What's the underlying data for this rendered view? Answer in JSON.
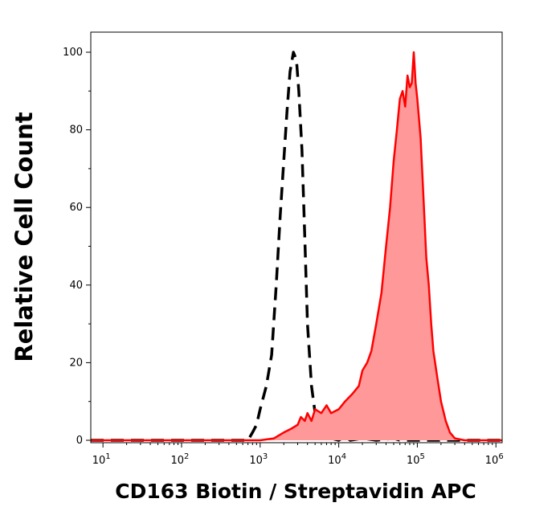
{
  "chart_data": {
    "type": "area",
    "title": "",
    "xlabel": "CD163 Biotin / Streptavidin APC",
    "ylabel": "Relative Cell Count",
    "x_scale": "log",
    "xlim": [
      7,
      1200000
    ],
    "ylim": [
      0,
      100
    ],
    "grid": false,
    "x_ticks": [
      {
        "value": 10,
        "base": "10",
        "exp": "1"
      },
      {
        "value": 100,
        "base": "10",
        "exp": "2"
      },
      {
        "value": 1000,
        "base": "10",
        "exp": "3"
      },
      {
        "value": 10000,
        "base": "10",
        "exp": "4"
      },
      {
        "value": 100000,
        "base": "10",
        "exp": "5"
      },
      {
        "value": 1000000,
        "base": "10",
        "exp": "6"
      }
    ],
    "y_ticks": [
      {
        "value": 0,
        "label": "0"
      },
      {
        "value": 20,
        "label": "20"
      },
      {
        "value": 40,
        "label": "40"
      },
      {
        "value": 60,
        "label": "60"
      },
      {
        "value": 80,
        "label": "80"
      },
      {
        "value": 100,
        "label": "100"
      }
    ],
    "series": [
      {
        "style": "dashed",
        "color": "#000000",
        "fill": false,
        "points": [
          [
            7,
            0
          ],
          [
            700,
            0
          ],
          [
            800,
            2
          ],
          [
            900,
            4
          ],
          [
            1000,
            8
          ],
          [
            1200,
            14
          ],
          [
            1400,
            22
          ],
          [
            1600,
            40
          ],
          [
            1800,
            58
          ],
          [
            2000,
            72
          ],
          [
            2200,
            85
          ],
          [
            2400,
            95
          ],
          [
            2650,
            100
          ],
          [
            2900,
            98
          ],
          [
            3100,
            90
          ],
          [
            3400,
            75
          ],
          [
            3700,
            52
          ],
          [
            4000,
            30
          ],
          [
            4500,
            14
          ],
          [
            5000,
            7
          ],
          [
            5600,
            3
          ],
          [
            6300,
            1
          ],
          [
            8000,
            0.5
          ],
          [
            10000,
            0
          ],
          [
            12000,
            1
          ],
          [
            14000,
            0
          ],
          [
            20000,
            0.5
          ],
          [
            30000,
            0
          ],
          [
            50000,
            0.5
          ],
          [
            60000,
            0
          ],
          [
            100000,
            0
          ],
          [
            1200000,
            0
          ]
        ]
      },
      {
        "style": "solid",
        "color": "#ff0000",
        "fill": true,
        "fill_color": "#ff9999",
        "points": [
          [
            7,
            0
          ],
          [
            1000,
            0
          ],
          [
            1500,
            0.5
          ],
          [
            2000,
            2
          ],
          [
            2500,
            3
          ],
          [
            3000,
            4
          ],
          [
            3300,
            6
          ],
          [
            3700,
            5
          ],
          [
            4000,
            7
          ],
          [
            4500,
            5
          ],
          [
            5000,
            8
          ],
          [
            6000,
            7
          ],
          [
            7000,
            9
          ],
          [
            8000,
            7
          ],
          [
            10000,
            8
          ],
          [
            12000,
            10
          ],
          [
            15000,
            12
          ],
          [
            18000,
            14
          ],
          [
            20000,
            18
          ],
          [
            23000,
            20
          ],
          [
            26000,
            23
          ],
          [
            30000,
            30
          ],
          [
            35000,
            38
          ],
          [
            40000,
            50
          ],
          [
            45000,
            60
          ],
          [
            50000,
            72
          ],
          [
            55000,
            80
          ],
          [
            60000,
            88
          ],
          [
            65000,
            90
          ],
          [
            70000,
            86
          ],
          [
            75000,
            94
          ],
          [
            80000,
            91
          ],
          [
            85000,
            92
          ],
          [
            90000,
            100
          ],
          [
            95000,
            92
          ],
          [
            100000,
            88
          ],
          [
            110000,
            78
          ],
          [
            120000,
            62
          ],
          [
            130000,
            47
          ],
          [
            140000,
            40
          ],
          [
            150000,
            30
          ],
          [
            160000,
            23
          ],
          [
            180000,
            16
          ],
          [
            200000,
            10
          ],
          [
            230000,
            5
          ],
          [
            260000,
            2
          ],
          [
            300000,
            0.5
          ],
          [
            400000,
            0
          ],
          [
            1200000,
            0
          ]
        ]
      }
    ]
  }
}
